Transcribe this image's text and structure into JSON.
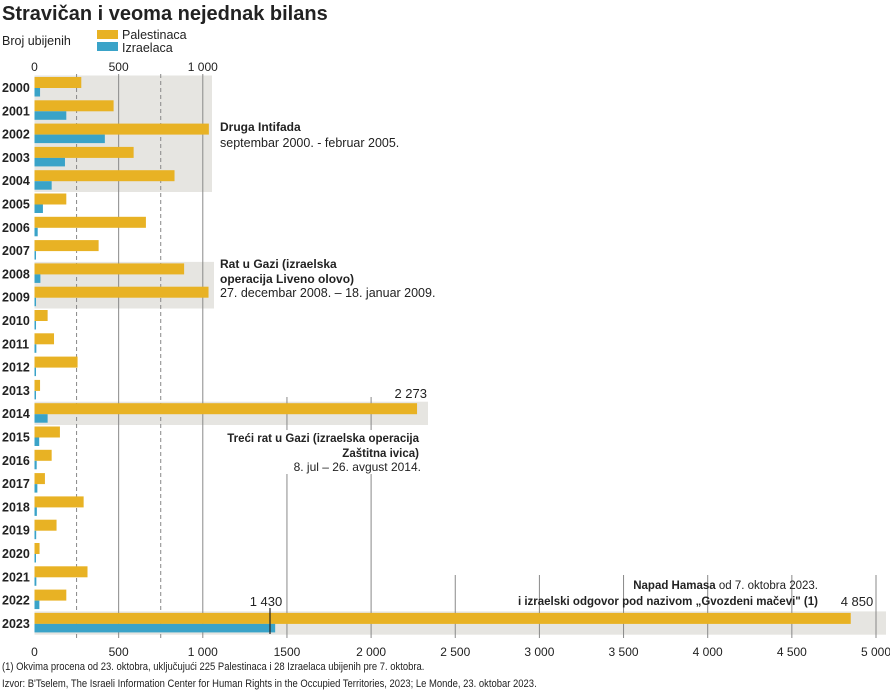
{
  "title": "Stravičan i veoma nejednak bilans",
  "subtitle": "Broj ubijenih",
  "colors": {
    "palestinians": "#E8B224",
    "israelis": "#3AA3C8",
    "band": "#E6E5E1",
    "grid": "#888888"
  },
  "chart_data": {
    "type": "bar",
    "orientation": "horizontal",
    "categories": [
      "2000",
      "2001",
      "2002",
      "2003",
      "2004",
      "2005",
      "2006",
      "2007",
      "2008",
      "2009",
      "2010",
      "2011",
      "2012",
      "2013",
      "2014",
      "2015",
      "2016",
      "2017",
      "2018",
      "2019",
      "2020",
      "2021",
      "2022",
      "2023"
    ],
    "series": [
      {
        "name": "Palestinaca",
        "values": [
          278,
          470,
          1036,
          589,
          832,
          189,
          662,
          381,
          889,
          1034,
          78,
          116,
          256,
          33,
          2273,
          151,
          102,
          62,
          292,
          131,
          30,
          315,
          189,
          4850
        ]
      },
      {
        "name": "Izraelaca",
        "values": [
          33,
          189,
          418,
          181,
          102,
          50,
          19,
          3,
          35,
          9,
          9,
          11,
          7,
          6,
          78,
          28,
          13,
          17,
          14,
          10,
          3,
          11,
          29,
          1430
        ]
      }
    ],
    "xlim": [
      0,
      5000
    ],
    "top_ticks": [
      {
        "v": 0,
        "label": "0"
      },
      {
        "v": 500,
        "label": "500"
      },
      {
        "v": 1000,
        "label": "1 000"
      }
    ],
    "bottom_ticks": [
      {
        "v": 0,
        "label": "0"
      },
      {
        "v": 500,
        "label": "500"
      },
      {
        "v": 1000,
        "label": "1 000"
      },
      {
        "v": 1500,
        "label": "1500"
      },
      {
        "v": 2000,
        "label": "2 000"
      },
      {
        "v": 2500,
        "label": "2 500"
      },
      {
        "v": 3000,
        "label": "3 000"
      },
      {
        "v": 3500,
        "label": "3 500"
      },
      {
        "v": 4000,
        "label": "4 000"
      },
      {
        "v": 4500,
        "label": "4 500"
      },
      {
        "v": 5000,
        "label": "5 000"
      }
    ],
    "dashed_grid": [
      250,
      750
    ],
    "legend_placement": "top-left",
    "data_labels": [
      {
        "year": "2014",
        "series": "Palestinaca",
        "label": "2 273"
      },
      {
        "year": "2023",
        "series": "Izraelaca",
        "label": "1 430"
      },
      {
        "year": "2023",
        "series": "Palestinaca",
        "label": "4 850"
      }
    ],
    "highlighted_periods": [
      {
        "from": "2000",
        "to": "2004",
        "title": "Druga Intifada",
        "lines": [
          "septembar 2000.  - februar 2005."
        ]
      },
      {
        "from": "2008",
        "to": "2009",
        "title": "Rat u Gazi (izraelska",
        "title2": "operacija Liveno olovo)",
        "lines": [
          "27. decembar 2008. – 18. januar 2009."
        ]
      },
      {
        "from": "2014",
        "to": "2014",
        "title": "Treći rat u Gazi (izraelska operacija",
        "title2": "Zaštitna ivica)",
        "lines": [
          "8. jul – 26. avgust 2014."
        ]
      },
      {
        "from": "2023",
        "to": "2023",
        "title": "Napad Hamasa",
        "title_rest": " od 7. oktobra 2023.",
        "title2": "i izraelski odgovor pod nazivom „Gvozdeni mačevi\" (1)",
        "lines": []
      }
    ]
  },
  "footnote": "(1) Okvima procena od 23. oktobra, uključujući 225 Palestinaca i 28 Izraelaca ubijenih pre 7. oktobra.",
  "source": "Izvor: B'Tselem, The Israeli Information Center for Human Rights in the Occupied Territories, 2023; Le Monde, 23. oktobar 2023."
}
